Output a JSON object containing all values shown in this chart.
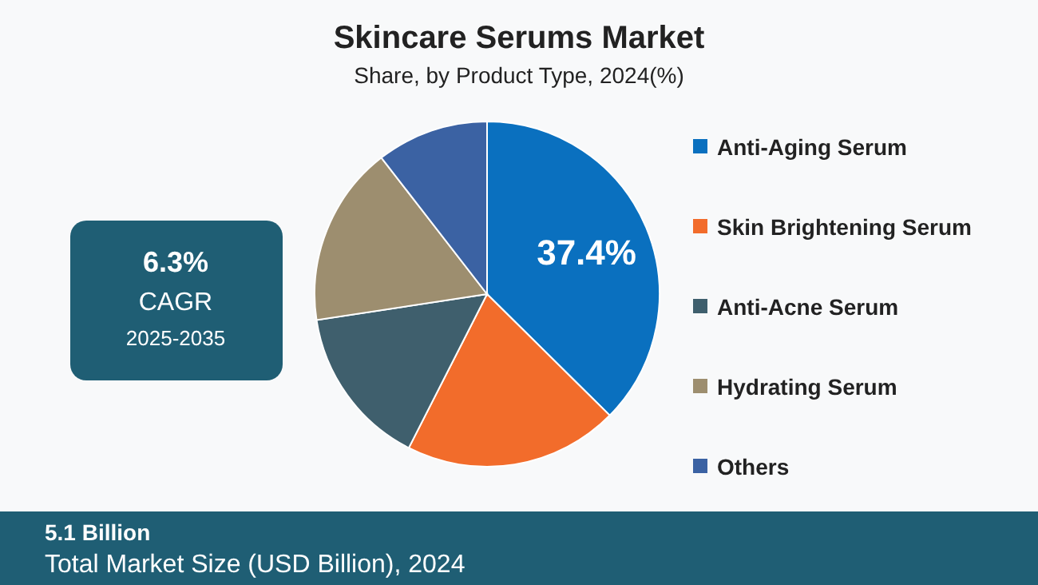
{
  "chart_data": {
    "type": "pie",
    "title": "Skincare Serums Market",
    "subtitle": "Share, by Product Type, 2024(%)",
    "categories": [
      "Anti-Aging Serum",
      "Skin Brightening Serum",
      "Anti-Acne Serum",
      "Hydrating Serum",
      "Others"
    ],
    "values": [
      37.4,
      20.1,
      15.1,
      16.9,
      10.5
    ],
    "colors": [
      "#0a70bf",
      "#f26c2b",
      "#3f5f6d",
      "#9d8e6f",
      "#3b62a3"
    ],
    "value_labels": [
      "37.4%",
      null,
      null,
      null,
      null
    ],
    "legend": "right",
    "annotations": [
      "6.3%",
      "CAGR",
      "2025-2035",
      "5.1 Billion",
      "Total Market Size (USD Billion), 2024"
    ]
  }
}
